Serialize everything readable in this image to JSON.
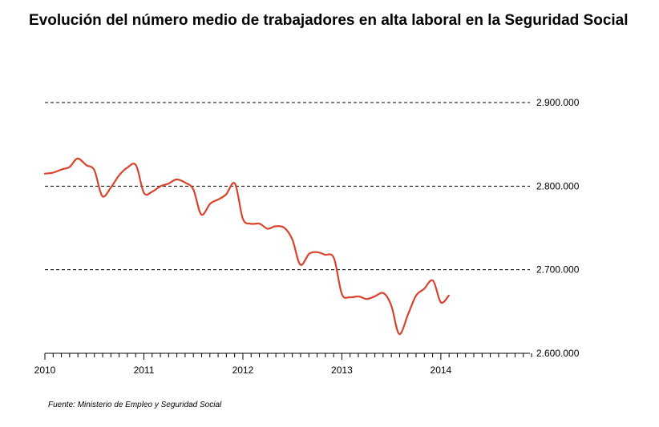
{
  "chart_data": {
    "type": "line",
    "title": "Evolución del número medio de trabajadores en alta laboral en la Seguridad Social",
    "source": "Fuente: Ministerio de Empleo y Seguridad Social",
    "xlabel": "",
    "ylabel": "",
    "xlim": [
      2010.0,
      2014.9
    ],
    "ylim": [
      2600000,
      2900000
    ],
    "x_ticks": [
      2010,
      2011,
      2012,
      2013,
      2014
    ],
    "x_tick_labels": [
      "2010",
      "2011",
      "2012",
      "2013",
      "2014"
    ],
    "y_ticks": [
      2600000,
      2700000,
      2800000,
      2900000
    ],
    "y_tick_labels": [
      "2.600.000",
      "2.700.000",
      "2.800.000",
      "2.900.000"
    ],
    "grid": "horizontal-dashed",
    "axis_side": "right",
    "colors": {
      "line": "#d9432c",
      "grid": "#000000",
      "text": "#000000"
    },
    "series": [
      {
        "x": [
          2010.0,
          2010.08,
          2010.17,
          2010.25,
          2010.33,
          2010.42,
          2010.5,
          2010.58,
          2010.67,
          2010.75,
          2010.83,
          2010.92,
          2011.0,
          2011.08,
          2011.17,
          2011.25,
          2011.33,
          2011.42,
          2011.5,
          2011.58,
          2011.67,
          2011.75,
          2011.83,
          2011.92,
          2012.0,
          2012.08,
          2012.17,
          2012.25,
          2012.33,
          2012.42,
          2012.5,
          2012.58,
          2012.67,
          2012.75,
          2012.83,
          2012.92,
          2013.0,
          2013.08,
          2013.17,
          2013.25,
          2013.33,
          2013.42,
          2013.5,
          2013.58,
          2013.67,
          2013.75,
          2013.83,
          2013.92,
          2014.0,
          2014.08
        ],
        "values": [
          2815000,
          2816000,
          2820000,
          2823000,
          2833000,
          2825000,
          2819000,
          2788000,
          2799000,
          2813000,
          2822000,
          2825000,
          2792000,
          2793000,
          2800000,
          2803000,
          2808000,
          2804000,
          2796000,
          2766000,
          2779000,
          2784000,
          2790000,
          2803000,
          2761000,
          2755000,
          2755000,
          2749000,
          2752000,
          2750000,
          2736000,
          2706000,
          2719000,
          2721000,
          2718000,
          2714000,
          2671000,
          2667000,
          2668000,
          2665000,
          2668000,
          2672000,
          2657000,
          2623000,
          2647000,
          2669000,
          2677000,
          2687000,
          2661000,
          2669000
        ]
      }
    ]
  }
}
